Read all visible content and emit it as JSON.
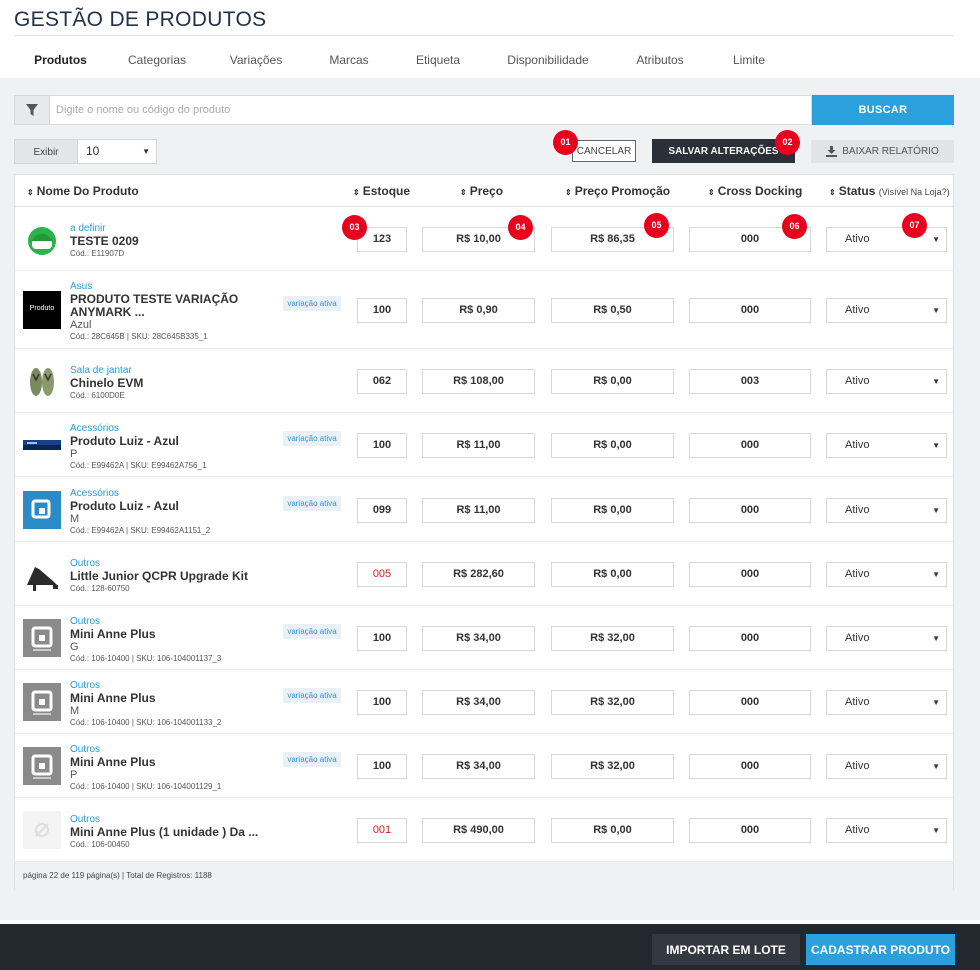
{
  "header": {
    "title": "GESTÃO DE PRODUTOS"
  },
  "tabs": [
    {
      "label": "Produtos"
    },
    {
      "label": "Categorias"
    },
    {
      "label": "Variações"
    },
    {
      "label": "Marcas"
    },
    {
      "label": "Etiqueta"
    },
    {
      "label": "Disponibilidade"
    },
    {
      "label": "Atributos"
    },
    {
      "label": "Limite"
    }
  ],
  "search": {
    "placeholder": "Digite o nome ou código do produto",
    "button": "BUSCAR",
    "filter_icon": "filter-icon"
  },
  "toolbar": {
    "exibir_label": "Exibir",
    "exibir_value": "10",
    "cancel": "CANCELAR",
    "save": "SALVAR ALTERAÇÕES",
    "report": "BAIXAR RELATÓRIO"
  },
  "badges": [
    "01",
    "02",
    "03",
    "04",
    "05",
    "06",
    "07"
  ],
  "columns": {
    "name": "Nome Do Produto",
    "stock": "Estoque",
    "price": "Preço",
    "promo": "Preço Promoção",
    "cross": "Cross Docking",
    "status": "Status",
    "status_note": "(Visível Na Loja?)"
  },
  "variation_tag": "variação ativa",
  "rows": [
    {
      "category": "a definir",
      "name": "TESTE 0209",
      "variant": "",
      "code": "Cód.: E11907D",
      "stock": "123",
      "stock_low": false,
      "price": "R$ 10,00",
      "promo": "R$ 86,35",
      "cross": "000",
      "status": "Ativo",
      "variation": false,
      "thumb": "helmet"
    },
    {
      "category": "Asus",
      "name": "PRODUTO TESTE VARIAÇÃO ANYMARK ...",
      "variant": "Azul",
      "code": "Cód.: 28C645B | SKU: 28C645B335_1",
      "stock": "100",
      "stock_low": false,
      "price": "R$ 0,90",
      "promo": "R$ 0,50",
      "cross": "000",
      "status": "Ativo",
      "variation": true,
      "thumb": "produto",
      "thumb_text": "Produto"
    },
    {
      "category": "Sala de jantar",
      "name": "Chinelo EVM",
      "variant": "",
      "code": "Cód.: 6100D0E",
      "stock": "062",
      "stock_low": false,
      "price": "R$ 108,00",
      "promo": "R$ 0,00",
      "cross": "003",
      "status": "Ativo",
      "variation": false,
      "thumb": "flipflop"
    },
    {
      "category": "Acessórios",
      "name": "Produto Luiz - Azul",
      "variant": "P",
      "code": "Cód.: E99462A | SKU: E99462A756_1",
      "stock": "100",
      "stock_low": false,
      "price": "R$ 11,00",
      "promo": "R$ 0,00",
      "cross": "000",
      "status": "Ativo",
      "variation": true,
      "thumb": "banner"
    },
    {
      "category": "Acessórios",
      "name": "Produto Luiz - Azul",
      "variant": "M",
      "code": "Cód.: E99462A | SKU: E99462A1151_2",
      "stock": "099",
      "stock_low": false,
      "price": "R$ 11,00",
      "promo": "R$ 0,00",
      "cross": "000",
      "status": "Ativo",
      "variation": true,
      "thumb": "bluelogo"
    },
    {
      "category": "Outros",
      "name": "Little Junior QCPR Upgrade Kit",
      "variant": "",
      "code": "Cód.: 128-60750",
      "stock": "005",
      "stock_low": true,
      "price": "R$ 282,60",
      "promo": "R$ 0,00",
      "cross": "000",
      "status": "Ativo",
      "variation": false,
      "thumb": "shoe"
    },
    {
      "category": "Outros",
      "name": "Mini Anne Plus",
      "variant": "G",
      "code": "Cód.: 106-10400 | SKU: 106-104001137_3",
      "stock": "100",
      "stock_low": false,
      "price": "R$ 34,00",
      "promo": "R$ 32,00",
      "cross": "000",
      "status": "Ativo",
      "variation": true,
      "thumb": "graylogo"
    },
    {
      "category": "Outros",
      "name": "Mini Anne Plus",
      "variant": "M",
      "code": "Cód.: 106-10400 | SKU: 106-104001133_2",
      "stock": "100",
      "stock_low": false,
      "price": "R$ 34,00",
      "promo": "R$ 32,00",
      "cross": "000",
      "status": "Ativo",
      "variation": true,
      "thumb": "graylogo"
    },
    {
      "category": "Outros",
      "name": "Mini Anne Plus",
      "variant": "P",
      "code": "Cód.: 106-10400 | SKU: 106-104001129_1",
      "stock": "100",
      "stock_low": false,
      "price": "R$ 34,00",
      "promo": "R$ 32,00",
      "cross": "000",
      "status": "Ativo",
      "variation": true,
      "thumb": "graylogo"
    },
    {
      "category": "Outros",
      "name": "Mini Anne Plus (1 unidade ) Da ...",
      "variant": "",
      "code": "Cód.: 106-00450",
      "stock": "001",
      "stock_low": true,
      "price": "R$ 490,00",
      "promo": "R$ 0,00",
      "cross": "000",
      "status": "Ativo",
      "variation": false,
      "thumb": "noimage"
    }
  ],
  "pagination": {
    "text": "página 22 de 119 página(s) | Total de Registros: 1188"
  },
  "bottom": {
    "import": "IMPORTAR EM LOTE",
    "create": "CADASTRAR PRODUTO"
  },
  "colors": {
    "accent": "#2aa0dd",
    "dark": "#23272e",
    "badge": "#e8001c",
    "low_stock": "#e01a1a",
    "category": "#2a9bd8"
  }
}
